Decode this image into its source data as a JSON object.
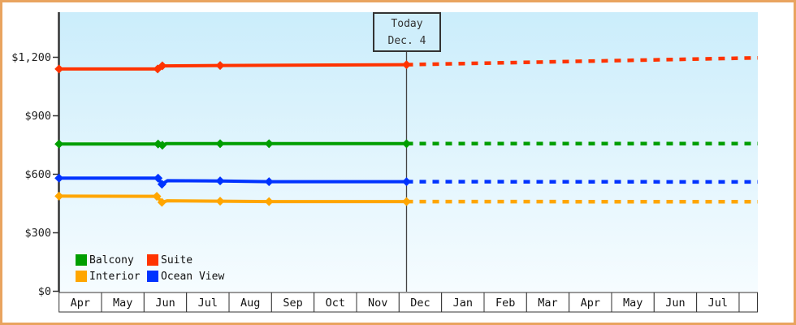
{
  "colors": {
    "frame_border": "#e9a45f",
    "plot_bg_top": "#cbedfb",
    "plot_bg_bottom": "#f6fcff",
    "axis": "#333333",
    "month_row_border": "#333333",
    "today_line": "#444444"
  },
  "today_flag": {
    "line1": "Today",
    "line2": "Dec. 4"
  },
  "chart_data": {
    "type": "line",
    "title": "",
    "x_axis": {
      "unit": "months_from_first_cell",
      "month_labels": [
        "Apr",
        "May",
        "Jun",
        "Jul",
        "Aug",
        "Sep",
        "Oct",
        "Nov",
        "Dec",
        "Jan",
        "Feb",
        "Mar",
        "Apr",
        "May",
        "Jun",
        "Jul"
      ],
      "has_trailing_empty_cell": true
    },
    "y_axis": {
      "tick_labels": [
        "$0",
        "$300",
        "$600",
        "$900",
        "$1,200"
      ],
      "tick_values": [
        0,
        300,
        600,
        900,
        1200
      ],
      "ylim": [
        0,
        1430
      ],
      "grid": false
    },
    "today": {
      "month_position": 8.175,
      "date_label": "Dec. 4"
    },
    "series": [
      {
        "name": "Balcony",
        "color": "#009e00",
        "solid": [
          {
            "m": 0,
            "v": 755,
            "pt": true
          },
          {
            "m": 2.33,
            "v": 755,
            "pt": true
          },
          {
            "m": 2.43,
            "v": 749,
            "pt": true
          },
          {
            "m": 2.52,
            "v": 757
          },
          {
            "m": 3.79,
            "v": 757,
            "pt": true
          },
          {
            "m": 4.94,
            "v": 757,
            "pt": true
          },
          {
            "m": 8.175,
            "v": 757,
            "pt": true
          }
        ],
        "projection": [
          {
            "m": 8.175,
            "v": 757
          },
          {
            "m": 16.44,
            "v": 757
          }
        ]
      },
      {
        "name": "Suite",
        "color": "#ff3300",
        "solid": [
          {
            "m": 0,
            "v": 1140,
            "pt": true
          },
          {
            "m": 2.32,
            "v": 1140,
            "pt": true
          },
          {
            "m": 2.43,
            "v": 1156,
            "pt": true
          },
          {
            "m": 3.79,
            "v": 1158,
            "pt": true
          },
          {
            "m": 8.175,
            "v": 1162,
            "pt": true
          }
        ],
        "projection": [
          {
            "m": 8.175,
            "v": 1162
          },
          {
            "m": 16.44,
            "v": 1197
          }
        ]
      },
      {
        "name": "Interior",
        "color": "#ffa600",
        "solid": [
          {
            "m": 0,
            "v": 488,
            "pt": true
          },
          {
            "m": 2.3,
            "v": 487,
            "pt": true
          },
          {
            "m": 2.42,
            "v": 456,
            "pt": true
          },
          {
            "m": 2.55,
            "v": 464
          },
          {
            "m": 3.79,
            "v": 462,
            "pt": true
          },
          {
            "m": 4.94,
            "v": 460,
            "pt": true
          },
          {
            "m": 8.175,
            "v": 460,
            "pt": true
          }
        ],
        "projection": [
          {
            "m": 8.175,
            "v": 460
          },
          {
            "m": 16.44,
            "v": 459
          }
        ]
      },
      {
        "name": "Ocean View",
        "color": "#0033ff",
        "solid": [
          {
            "m": 0,
            "v": 580,
            "pt": true
          },
          {
            "m": 2.33,
            "v": 580,
            "pt": true
          },
          {
            "m": 2.42,
            "v": 549,
            "pt": true
          },
          {
            "m": 2.55,
            "v": 567
          },
          {
            "m": 3.79,
            "v": 566,
            "pt": true
          },
          {
            "m": 4.94,
            "v": 562,
            "pt": true
          },
          {
            "m": 8.175,
            "v": 562,
            "pt": true
          }
        ],
        "projection": [
          {
            "m": 8.175,
            "v": 562
          },
          {
            "m": 16.44,
            "v": 561
          }
        ]
      }
    ],
    "legend": {
      "position": "bottom-left",
      "columns": 2,
      "items": [
        "Balcony",
        "Suite",
        "Interior",
        "Ocean View"
      ]
    }
  }
}
